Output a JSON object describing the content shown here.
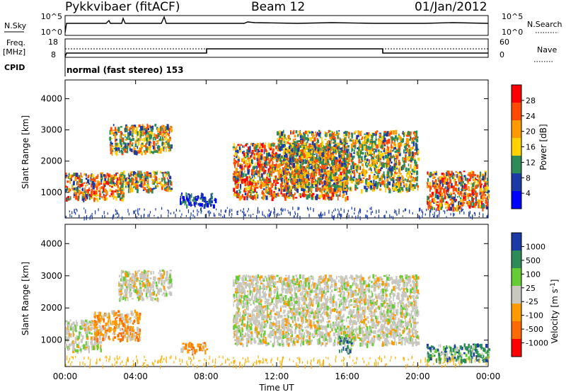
{
  "header": {
    "station": "Pykkvibaer (fitACF)",
    "beam": "Beam 12",
    "date": "01/Jan/2012"
  },
  "strip": {
    "nsky_label": "N.Sky",
    "nsky_ticks": [
      "10^5",
      "10^0"
    ],
    "nsearch_label": "N.Search",
    "nsearch_ticks": [
      "10^5",
      "10^0"
    ],
    "freq_label_1": "Freq.",
    "freq_label_2": "[MHz]",
    "freq_ticks": [
      "18",
      "8"
    ],
    "nave_label": "Nave",
    "nave_ticks": [
      "60",
      "0"
    ],
    "cpid_label": "CPID",
    "cpid_text": "normal (fast stereo) 153"
  },
  "chart_data": [
    {
      "type": "heatmap",
      "name": "power",
      "ylabel": "Slant Range [km]",
      "yticks": [
        "4000",
        "3000",
        "2000",
        "1000"
      ],
      "ylim": [
        180,
        4600
      ],
      "colorbar_label": "Power [dB]",
      "colorbar_ticks": [
        "28",
        "24",
        "20",
        "16",
        "12",
        "8",
        "4"
      ],
      "colorbar_colors": [
        "#ff0000",
        "#ff4a00",
        "#ff9a00",
        "#ffd200",
        "#2d8b57",
        "#1a3aa6",
        "#0000ff"
      ],
      "regions": [
        {
          "t0": 0.0,
          "t1": 3.3,
          "r0": 800,
          "r1": 1650,
          "level": "high"
        },
        {
          "t0": 2.5,
          "t1": 6.0,
          "r0": 2300,
          "r1": 3200,
          "level": "mid"
        },
        {
          "t0": 3.0,
          "t1": 6.0,
          "r0": 1100,
          "r1": 1700,
          "level": "mid"
        },
        {
          "t0": 6.5,
          "t1": 8.5,
          "r0": 600,
          "r1": 1000,
          "level": "low"
        },
        {
          "t0": 9.5,
          "t1": 16.0,
          "r0": 850,
          "r1": 2600,
          "level": "high"
        },
        {
          "t0": 12.0,
          "t1": 20.0,
          "r0": 1100,
          "r1": 3000,
          "level": "mid"
        },
        {
          "t0": 20.5,
          "t1": 24.0,
          "r0": 500,
          "r1": 1700,
          "level": "high"
        }
      ]
    },
    {
      "type": "heatmap",
      "name": "velocity",
      "xlabel": "Time UT",
      "ylabel": "Slant Range [km]",
      "yticks": [
        "4000",
        "3000",
        "2000",
        "1000"
      ],
      "ylim": [
        180,
        4600
      ],
      "xticks": [
        "00:00",
        "04:00",
        "08:00",
        "12:00",
        "16:00",
        "20:00",
        "00:00"
      ],
      "xlim": [
        0,
        24
      ],
      "colorbar_label": "Velocity [m s",
      "colorbar_label_sup": "-1",
      "colorbar_label_end": "]",
      "colorbar_ticks": [
        "1000",
        "500",
        "100",
        "25",
        "-25",
        "-100",
        "-500",
        "-1000"
      ],
      "colorbar_colors": [
        "#1a3aa6",
        "#2d8b57",
        "#66cc33",
        "#c8c8c0",
        "#ff9a00",
        "#ff6a00",
        "#ff0000"
      ],
      "regions": [
        {
          "t0": 0.0,
          "t1": 2.0,
          "r0": 700,
          "r1": 1650,
          "v": "gray"
        },
        {
          "t0": 1.6,
          "t1": 4.2,
          "r0": 1050,
          "r1": 1950,
          "v": "orange"
        },
        {
          "t0": 3.0,
          "t1": 6.0,
          "r0": 2300,
          "r1": 3200,
          "v": "gray"
        },
        {
          "t0": 6.5,
          "t1": 8.0,
          "r0": 650,
          "r1": 950,
          "v": "orange"
        },
        {
          "t0": 9.5,
          "t1": 20.0,
          "r0": 900,
          "r1": 3050,
          "v": "gray"
        },
        {
          "t0": 15.5,
          "t1": 16.2,
          "r0": 700,
          "r1": 1200,
          "v": "green"
        },
        {
          "t0": 20.5,
          "t1": 24.0,
          "r0": 400,
          "r1": 900,
          "v": "green"
        }
      ]
    }
  ],
  "colors": {
    "axis": "#000000",
    "background": "#ffffff"
  }
}
